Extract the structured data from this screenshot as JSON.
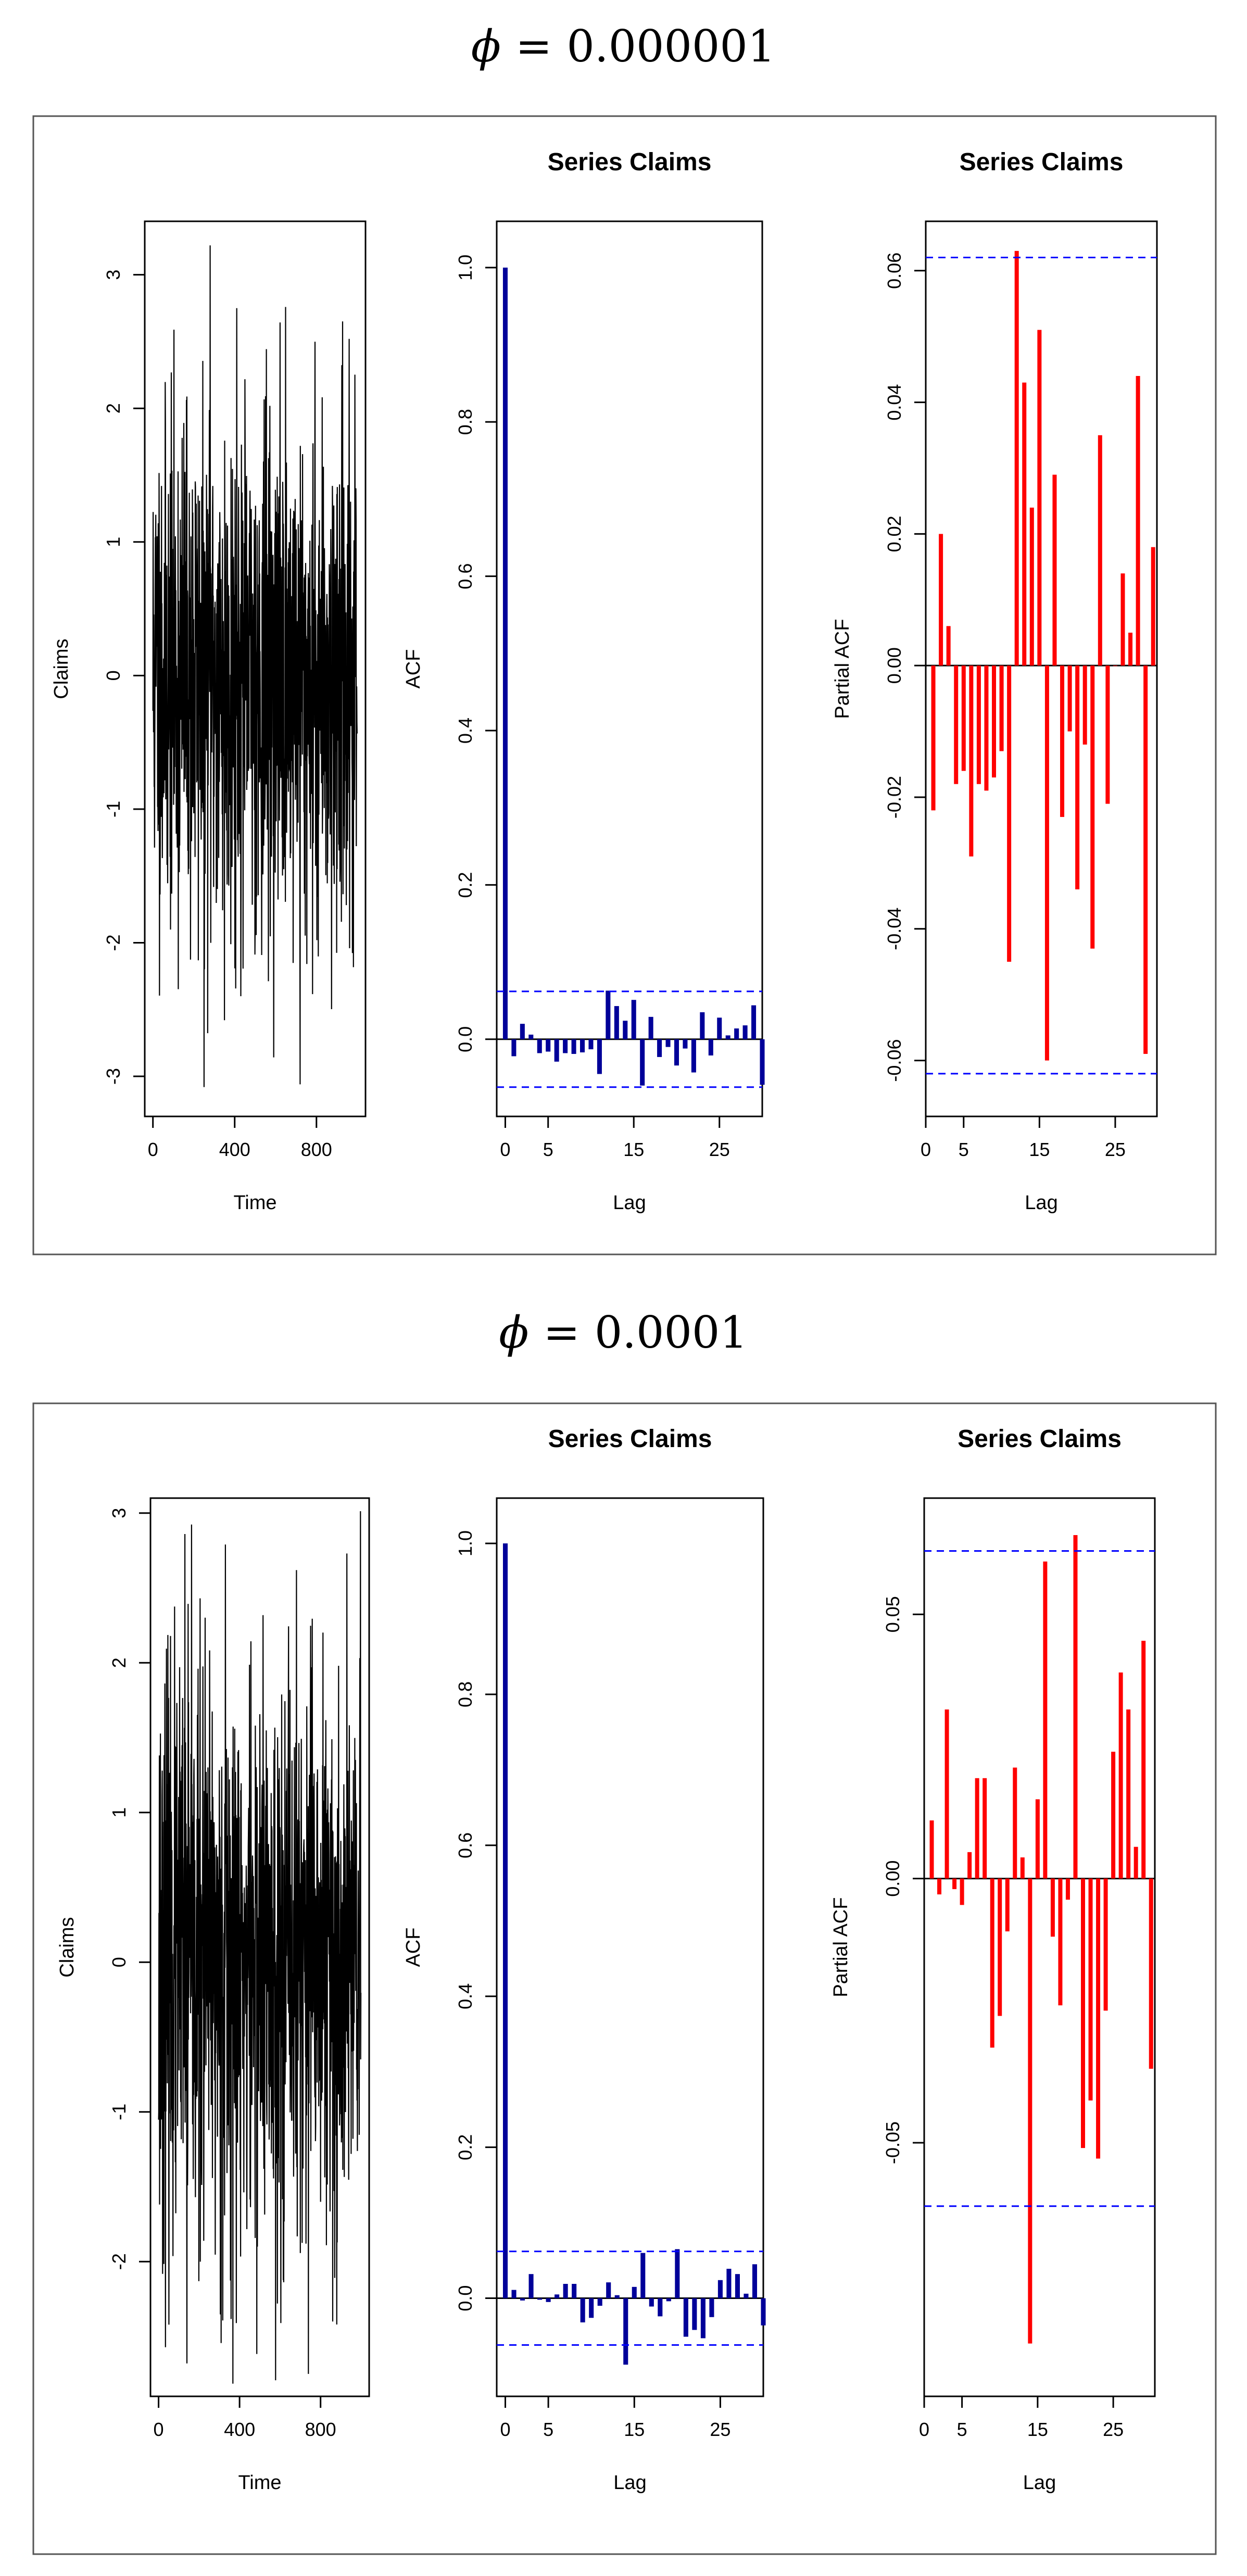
{
  "figure": {
    "title_1": {
      "symbol": "ϕ",
      "eq": "=",
      "value": "0.000001"
    },
    "title_2": {
      "symbol": "ϕ",
      "eq": "=",
      "value": "0.0001"
    }
  },
  "colors": {
    "acf_bar": "#000099",
    "pacf_bar": "#ff0000",
    "ci_line": "#0000ff",
    "series_line": "#000000"
  },
  "chart_data": [
    {
      "type": "line",
      "name": "ts-1",
      "title": "",
      "xlabel": "Time",
      "ylabel": "Claims",
      "xlim": [
        -40,
        1040
      ],
      "ylim": [
        -3.3,
        3.4
      ],
      "xticks": [
        0,
        400,
        800
      ],
      "yticks": [
        -3,
        -2,
        -1,
        0,
        1,
        2,
        3
      ],
      "n": 1000,
      "seed": 11,
      "peaks": [
        [
          280,
          3.22
        ],
        [
          410,
          2.75
        ],
        [
          960,
          2.52
        ],
        [
          250,
          -3.08
        ],
        [
          720,
          -3.06
        ],
        [
          350,
          -2.58
        ],
        [
          430,
          -2.4
        ]
      ]
    },
    {
      "type": "bar",
      "name": "acf-1",
      "title": "Series  Claims",
      "xlabel": "Lag",
      "ylabel": "ACF",
      "xlim": [
        -1,
        30
      ],
      "ylim": [
        -0.1,
        1.06
      ],
      "xticks": [
        0,
        5,
        15,
        25
      ],
      "yticks": [
        0.0,
        0.2,
        0.4,
        0.6,
        0.8,
        1.0
      ],
      "ci": 0.062,
      "zero_line": true,
      "lags": [
        0,
        1,
        2,
        3,
        4,
        5,
        6,
        7,
        8,
        9,
        10,
        11,
        12,
        13,
        14,
        15,
        16,
        17,
        18,
        19,
        20,
        21,
        22,
        23,
        24,
        25,
        26,
        27,
        28,
        29,
        30
      ],
      "values": [
        1.0,
        -0.022,
        0.02,
        0.006,
        -0.018,
        -0.016,
        -0.029,
        -0.018,
        -0.019,
        -0.017,
        -0.013,
        -0.045,
        0.063,
        0.043,
        0.024,
        0.051,
        -0.06,
        0.029,
        -0.023,
        -0.01,
        -0.034,
        -0.012,
        -0.043,
        0.035,
        -0.021,
        0.028,
        0.005,
        0.014,
        0.018,
        0.044,
        -0.059
      ]
    },
    {
      "type": "bar",
      "name": "pacf-1",
      "title": "Series  Claims",
      "xlabel": "Lag",
      "ylabel": "Partial ACF",
      "xlim": [
        0,
        30.5
      ],
      "ylim": [
        -0.0685,
        0.0675
      ],
      "xticks": [
        0,
        5,
        15,
        25
      ],
      "yticks": [
        -0.06,
        -0.04,
        -0.02,
        0.0,
        0.02,
        0.04,
        0.06
      ],
      "ci": 0.062,
      "zero_line": true,
      "lags": [
        1,
        2,
        3,
        4,
        5,
        6,
        7,
        8,
        9,
        10,
        11,
        12,
        13,
        14,
        15,
        16,
        17,
        18,
        19,
        20,
        21,
        22,
        23,
        24,
        25,
        26,
        27,
        28,
        29,
        30
      ],
      "values": [
        -0.022,
        0.02,
        0.006,
        -0.018,
        -0.016,
        -0.029,
        -0.018,
        -0.019,
        -0.017,
        -0.013,
        -0.045,
        0.063,
        0.043,
        0.024,
        0.051,
        -0.06,
        0.029,
        -0.023,
        -0.01,
        -0.034,
        -0.012,
        -0.043,
        0.035,
        -0.021,
        0.0,
        0.014,
        0.005,
        0.044,
        -0.059,
        0.018
      ]
    },
    {
      "type": "line",
      "name": "ts-2",
      "title": "",
      "xlabel": "Time",
      "ylabel": "Claims",
      "xlim": [
        -40,
        1040
      ],
      "ylim": [
        -2.9,
        3.1
      ],
      "xticks": [
        0,
        400,
        800
      ],
      "yticks": [
        -2,
        -1,
        0,
        1,
        2,
        3
      ],
      "n": 1000,
      "seed": 23,
      "peaks": [
        [
          130,
          2.86
        ],
        [
          330,
          2.79
        ],
        [
          930,
          2.73
        ],
        [
          740,
          -2.75
        ],
        [
          140,
          -2.68
        ],
        [
          860,
          -2.4
        ],
        [
          880,
          -2.42
        ]
      ]
    },
    {
      "type": "bar",
      "name": "acf-2",
      "title": "Series  Claims",
      "xlabel": "Lag",
      "ylabel": "ACF",
      "xlim": [
        -1,
        30
      ],
      "ylim": [
        -0.13,
        1.06
      ],
      "xticks": [
        0,
        5,
        15,
        25
      ],
      "yticks": [
        0.0,
        0.2,
        0.4,
        0.6,
        0.8,
        1.0
      ],
      "ci": 0.062,
      "zero_line": true,
      "lags": [
        0,
        1,
        2,
        3,
        4,
        5,
        6,
        7,
        8,
        9,
        10,
        11,
        12,
        13,
        14,
        15,
        16,
        17,
        18,
        19,
        20,
        21,
        22,
        23,
        24,
        25,
        26,
        27,
        28,
        29,
        30
      ],
      "values": [
        1.0,
        0.011,
        -0.003,
        0.032,
        -0.002,
        -0.005,
        0.005,
        0.019,
        0.019,
        -0.032,
        -0.026,
        -0.01,
        0.021,
        0.004,
        -0.088,
        0.015,
        0.06,
        -0.011,
        -0.024,
        -0.004,
        0.065,
        -0.051,
        -0.042,
        -0.053,
        -0.025,
        0.024,
        0.039,
        0.032,
        0.006,
        0.045,
        -0.036
      ]
    },
    {
      "type": "bar",
      "name": "pacf-2",
      "title": "Series  Claims",
      "xlabel": "Lag",
      "ylabel": "Partial ACF",
      "xlim": [
        0,
        30.5
      ],
      "ylim": [
        -0.098,
        0.072
      ],
      "xticks": [
        0,
        5,
        15,
        25
      ],
      "yticks": [
        -0.05,
        0.0,
        0.05
      ],
      "ci": 0.062,
      "zero_line": true,
      "lags": [
        1,
        2,
        3,
        4,
        5,
        6,
        7,
        8,
        9,
        10,
        11,
        12,
        13,
        14,
        15,
        16,
        17,
        18,
        19,
        20,
        21,
        22,
        23,
        24,
        25,
        26,
        27,
        28,
        29,
        30
      ],
      "values": [
        0.011,
        -0.003,
        0.032,
        -0.002,
        -0.005,
        0.005,
        0.019,
        0.019,
        -0.032,
        -0.026,
        -0.01,
        0.021,
        0.004,
        -0.088,
        0.015,
        0.06,
        -0.011,
        -0.024,
        -0.004,
        0.065,
        -0.051,
        -0.042,
        -0.053,
        -0.025,
        0.024,
        0.039,
        0.032,
        0.006,
        0.045,
        -0.036
      ]
    }
  ]
}
